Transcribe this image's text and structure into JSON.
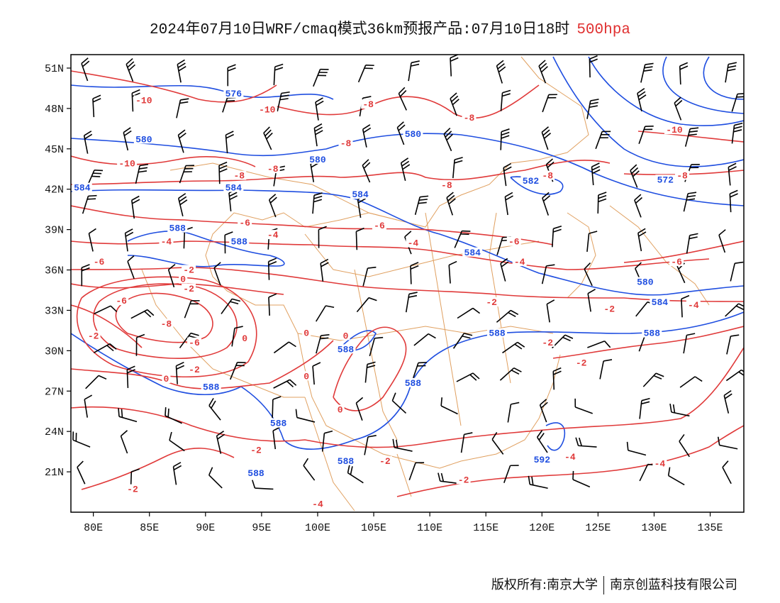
{
  "title": {
    "main": "2024年07月10日WRF/cmaq模式36km预报产品:07月10日18时",
    "level": "500hpa"
  },
  "colors": {
    "height_contour": "#1f4ee0",
    "temperature_contour": "#e03a3a",
    "border": "#e0a060",
    "barb": "#000000"
  },
  "axes": {
    "x_ticks": [
      "80E",
      "85E",
      "90E",
      "95E",
      "100E",
      "105E",
      "110E",
      "115E",
      "120E",
      "125E",
      "130E",
      "135E"
    ],
    "y_ticks": [
      "51N",
      "48N",
      "45N",
      "42N",
      "39N",
      "36N",
      "33N",
      "30N",
      "27N",
      "24N",
      "21N"
    ]
  },
  "chart_data": {
    "type": "map",
    "domain": {
      "lon": [
        78,
        138
      ],
      "lat": [
        18,
        52
      ]
    },
    "height_labels": [
      {
        "text": "576",
        "lon": 92.5,
        "lat": 49.0
      },
      {
        "text": "580",
        "lon": 84.5,
        "lat": 45.6
      },
      {
        "text": "580",
        "lon": 108.5,
        "lat": 46.0
      },
      {
        "text": "580",
        "lon": 100.0,
        "lat": 44.1
      },
      {
        "text": "584",
        "lon": 79.0,
        "lat": 42.0
      },
      {
        "text": "584",
        "lon": 92.5,
        "lat": 42.0
      },
      {
        "text": "584",
        "lon": 103.8,
        "lat": 41.5
      },
      {
        "text": "588",
        "lon": 87.5,
        "lat": 39.0
      },
      {
        "text": "588",
        "lon": 93.0,
        "lat": 38.0
      },
      {
        "text": "582",
        "lon": 119.0,
        "lat": 42.5
      },
      {
        "text": "572",
        "lon": 131.0,
        "lat": 42.6
      },
      {
        "text": "584",
        "lon": 113.8,
        "lat": 37.2
      },
      {
        "text": "580",
        "lon": 129.2,
        "lat": 35.0
      },
      {
        "text": "584",
        "lon": 130.5,
        "lat": 33.5
      },
      {
        "text": "588",
        "lon": 116.0,
        "lat": 31.2
      },
      {
        "text": "588",
        "lon": 129.8,
        "lat": 31.2
      },
      {
        "text": "588",
        "lon": 102.5,
        "lat": 30.0
      },
      {
        "text": "588",
        "lon": 108.5,
        "lat": 27.5
      },
      {
        "text": "588",
        "lon": 90.5,
        "lat": 27.2
      },
      {
        "text": "588",
        "lon": 96.5,
        "lat": 24.5
      },
      {
        "text": "588",
        "lon": 102.5,
        "lat": 21.7
      },
      {
        "text": "588",
        "lon": 94.5,
        "lat": 20.8
      },
      {
        "text": "592",
        "lon": 120.0,
        "lat": 21.8
      }
    ],
    "temperature_labels": [
      {
        "text": "-10",
        "lon": 84.5,
        "lat": 48.5
      },
      {
        "text": "-10",
        "lon": 95.5,
        "lat": 47.8
      },
      {
        "text": "-8",
        "lon": 104.5,
        "lat": 48.2
      },
      {
        "text": "-8",
        "lon": 113.5,
        "lat": 47.2
      },
      {
        "text": "-10",
        "lon": 83.0,
        "lat": 43.8
      },
      {
        "text": "-8",
        "lon": 93.0,
        "lat": 42.9
      },
      {
        "text": "-8",
        "lon": 96.0,
        "lat": 43.4
      },
      {
        "text": "-8",
        "lon": 102.5,
        "lat": 45.3
      },
      {
        "text": "-8",
        "lon": 111.5,
        "lat": 42.2
      },
      {
        "text": "-8",
        "lon": 120.5,
        "lat": 42.9
      },
      {
        "text": "-10",
        "lon": 131.8,
        "lat": 46.3
      },
      {
        "text": "-8",
        "lon": 132.5,
        "lat": 42.9
      },
      {
        "text": "-6",
        "lon": 93.5,
        "lat": 39.4
      },
      {
        "text": "-6",
        "lon": 105.5,
        "lat": 39.2
      },
      {
        "text": "-4",
        "lon": 86.5,
        "lat": 38.0
      },
      {
        "text": "-4",
        "lon": 96.0,
        "lat": 38.5
      },
      {
        "text": "-4",
        "lon": 108.5,
        "lat": 37.9
      },
      {
        "text": "-6",
        "lon": 117.5,
        "lat": 38.0
      },
      {
        "text": "-4",
        "lon": 118.0,
        "lat": 36.5
      },
      {
        "text": "-6",
        "lon": 80.5,
        "lat": 36.5
      },
      {
        "text": "-2",
        "lon": 88.5,
        "lat": 35.9
      },
      {
        "text": "0",
        "lon": 88.0,
        "lat": 35.2
      },
      {
        "text": "-2",
        "lon": 88.5,
        "lat": 34.5
      },
      {
        "text": "-6",
        "lon": 132.0,
        "lat": 36.5
      },
      {
        "text": "-6",
        "lon": 82.5,
        "lat": 33.6
      },
      {
        "text": "-8",
        "lon": 86.5,
        "lat": 31.9
      },
      {
        "text": "-2",
        "lon": 80.0,
        "lat": 31.0
      },
      {
        "text": "-6",
        "lon": 89.0,
        "lat": 30.5
      },
      {
        "text": "-2",
        "lon": 115.5,
        "lat": 33.5
      },
      {
        "text": "-2",
        "lon": 126.0,
        "lat": 33.0
      },
      {
        "text": "-4",
        "lon": 133.5,
        "lat": 33.3
      },
      {
        "text": "0",
        "lon": 93.5,
        "lat": 30.8
      },
      {
        "text": "0",
        "lon": 99.0,
        "lat": 31.2
      },
      {
        "text": "-2",
        "lon": 89.0,
        "lat": 28.5
      },
      {
        "text": "0",
        "lon": 86.5,
        "lat": 27.8
      },
      {
        "text": "0",
        "lon": 102.5,
        "lat": 31.0
      },
      {
        "text": "0",
        "lon": 99.0,
        "lat": 28.0
      },
      {
        "text": "0",
        "lon": 102.0,
        "lat": 25.5
      },
      {
        "text": "-2",
        "lon": 120.5,
        "lat": 30.5
      },
      {
        "text": "-2",
        "lon": 123.5,
        "lat": 29.0
      },
      {
        "text": "-2",
        "lon": 94.5,
        "lat": 22.5
      },
      {
        "text": "-2",
        "lon": 106.0,
        "lat": 21.7
      },
      {
        "text": "-4",
        "lon": 122.5,
        "lat": 22.0
      },
      {
        "text": "-4",
        "lon": 130.5,
        "lat": 21.5
      },
      {
        "text": "-2",
        "lon": 113.0,
        "lat": 20.3
      },
      {
        "text": "-2",
        "lon": 83.5,
        "lat": 19.6
      },
      {
        "text": "-4",
        "lon": 100.0,
        "lat": 18.5
      }
    ]
  },
  "footer": {
    "copyright": "版权所有:南京大学",
    "company": "南京创蓝科技有限公司"
  }
}
